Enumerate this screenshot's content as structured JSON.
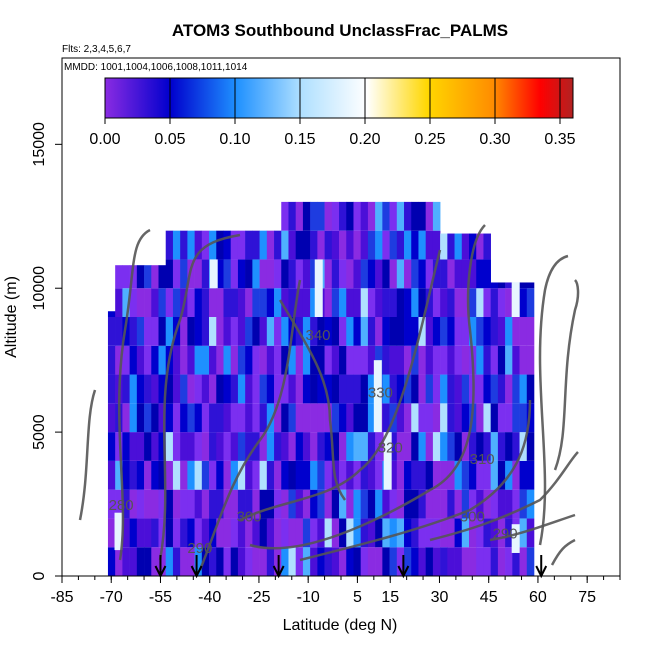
{
  "chart_data": {
    "type": "heatmap",
    "title": "ATOM3 Southbound UnclassFrac_PALMS",
    "subtitle_lines": [
      "Flts: 2,3,4,5,6,7",
      "MMDD: 1001,1004,1006,1008,1011,1014"
    ],
    "xlabel": "Latitude (deg N)",
    "ylabel": "Altitude (m)",
    "xlim": [
      -85,
      85
    ],
    "ylim": [
      0,
      18000
    ],
    "x_ticks": [
      -85,
      -70,
      -55,
      -40,
      -25,
      -10,
      5,
      15,
      30,
      45,
      60,
      75
    ],
    "y_ticks": [
      0,
      5000,
      10000,
      15000
    ],
    "colorbar": {
      "range": [
        0,
        0.36
      ],
      "ticks": [
        "0.00",
        "0.05",
        "0.10",
        "0.15",
        "0.20",
        "0.25",
        "0.30",
        "0.35"
      ],
      "colors": [
        "#8a2be2",
        "#0000cd",
        "#1e90ff",
        "#ffffff",
        "#ffd700",
        "#ff8c00",
        "#ff0000",
        "#b22222"
      ]
    },
    "contour_labels": [
      {
        "text": "340",
        "lat": -7,
        "alt": 8200
      },
      {
        "text": "330",
        "lat": 12,
        "alt": 6200
      },
      {
        "text": "320",
        "lat": 15,
        "alt": 4300
      },
      {
        "text": "310",
        "lat": 43,
        "alt": 3900
      },
      {
        "text": "300",
        "lat": -28,
        "alt": 1900
      },
      {
        "text": "300",
        "lat": 40,
        "alt": 1900
      },
      {
        "text": "290",
        "lat": -43,
        "alt": 800
      },
      {
        "text": "290",
        "lat": 50,
        "alt": 1300
      },
      {
        "text": "280",
        "lat": -67,
        "alt": 2300
      }
    ],
    "flight_markers_lat": [
      -55,
      -44,
      -19,
      19,
      61
    ],
    "grid": false,
    "legend": "colorbar-top"
  }
}
